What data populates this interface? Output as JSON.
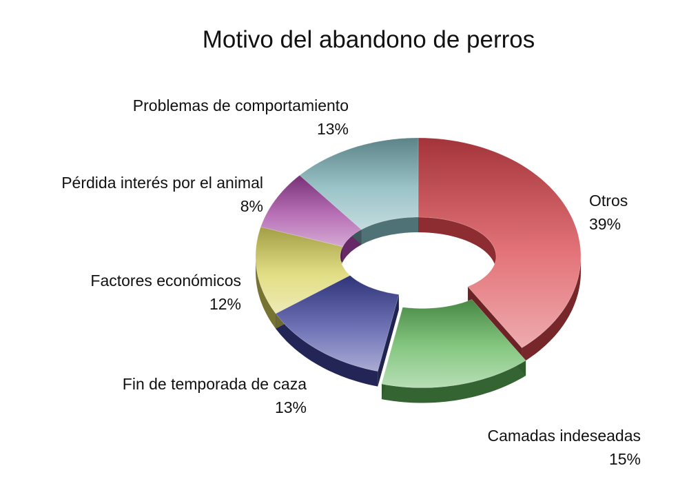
{
  "chart_data": {
    "type": "pie",
    "style": "3d-donut",
    "title": "Motivo del abandono de perros",
    "legend": "none",
    "slices": [
      {
        "label": "Otros",
        "value": 39,
        "display": "39%",
        "color": "#d9454c",
        "exploded": false
      },
      {
        "label": "Camadas indeseadas",
        "value": 15,
        "display": "15%",
        "color": "#5fb65a",
        "exploded": true
      },
      {
        "label": "Fin de temporada de caza",
        "value": 13,
        "display": "13%",
        "color": "#3f449e",
        "exploded": false
      },
      {
        "label": "Factores económicos",
        "value": 12,
        "display": "12%",
        "color": "#d8d35c",
        "exploded": false
      },
      {
        "label": "Pérdida interés por el animal",
        "value": 8,
        "display": "8%",
        "color": "#a0409d",
        "exploded": false
      },
      {
        "label": "Problemas de comportamiento",
        "value": 13,
        "display": "13%",
        "color": "#7ab0b5",
        "exploded": false
      }
    ]
  }
}
